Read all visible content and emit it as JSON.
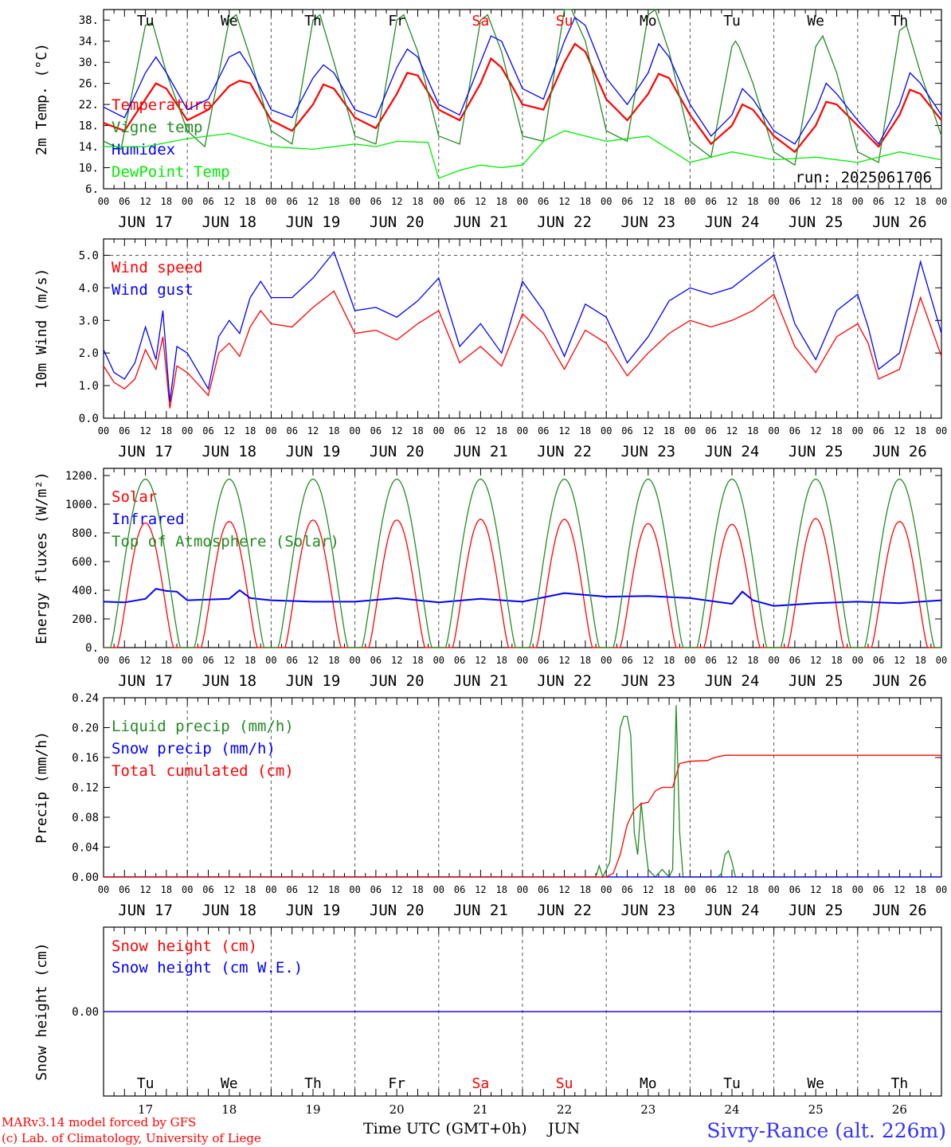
{
  "chart_data": [
    {
      "type": "line",
      "ylabel": "2m Temp. (°C)",
      "ylim": [
        6,
        40
      ],
      "yticks": [
        "6.",
        "10.",
        "14.",
        "18.",
        "22.",
        "26.",
        "30.",
        "34.",
        "38."
      ],
      "annotation": "run: 2025061706",
      "grid": "dashed vertical at 00 UTC",
      "x_unit": "hours since 17 Jun 00 UTC",
      "series": [
        {
          "name": "Temperature",
          "color": "#ff0000",
          "x": [
            0,
            6,
            12,
            15,
            18,
            24,
            30,
            36,
            39,
            42,
            48,
            54,
            60,
            63,
            66,
            72,
            78,
            84,
            87,
            90,
            96,
            102,
            108,
            111,
            114,
            120,
            126,
            132,
            135,
            138,
            144,
            150,
            156,
            159,
            162,
            168,
            174,
            180,
            183,
            186,
            192,
            198,
            204,
            207,
            210,
            216,
            222,
            228,
            231,
            234,
            240
          ],
          "values": [
            18.5,
            17,
            23,
            26,
            25,
            19,
            21,
            25.5,
            26.5,
            26,
            19,
            17,
            22,
            25.8,
            25,
            19.5,
            17.5,
            24,
            28,
            27.5,
            21,
            19,
            26,
            30.7,
            29,
            22,
            21,
            30,
            33.5,
            32,
            23,
            19,
            24,
            27.8,
            27,
            20,
            14.5,
            18,
            22,
            21,
            16,
            13,
            18,
            22.5,
            22,
            18,
            14,
            20,
            24.8,
            24,
            19
          ]
        },
        {
          "name": "Vigne temp",
          "color": "#228b22",
          "x": [
            0,
            5,
            12,
            14,
            18,
            24,
            29,
            36,
            38,
            42,
            48,
            54,
            60,
            62,
            66,
            72,
            78,
            84,
            86,
            90,
            96,
            102,
            108,
            110,
            114,
            120,
            126,
            132,
            134,
            138,
            144,
            150,
            156,
            158,
            162,
            168,
            174,
            180,
            181,
            182,
            186,
            192,
            198,
            204,
            206,
            210,
            216,
            222,
            228,
            230,
            234,
            240
          ],
          "values": [
            15,
            13.5,
            37,
            37.5,
            28,
            17,
            14,
            38,
            39,
            31,
            17,
            14.5,
            38,
            39,
            30,
            16,
            14.5,
            38,
            39,
            32,
            16,
            14.5,
            38,
            39,
            32,
            16,
            15,
            40,
            41,
            34,
            17,
            15,
            39,
            40,
            32,
            15,
            12,
            33,
            34,
            33,
            26,
            13,
            10.5,
            33,
            35,
            28,
            13,
            11,
            36,
            37,
            28,
            16
          ]
        },
        {
          "name": "Humidex",
          "color": "#0000ff",
          "x": [
            0,
            6,
            12,
            15,
            18,
            24,
            30,
            36,
            39,
            42,
            48,
            54,
            60,
            63,
            66,
            72,
            78,
            84,
            87,
            90,
            96,
            102,
            108,
            111,
            114,
            120,
            126,
            132,
            135,
            138,
            144,
            150,
            156,
            159,
            162,
            168,
            174,
            180,
            183,
            186,
            192,
            198,
            204,
            207,
            210,
            216,
            222,
            228,
            231,
            234,
            240
          ],
          "values": [
            21.5,
            19.5,
            28,
            31,
            28,
            21,
            23,
            31,
            32,
            29,
            21,
            19.5,
            27,
            29.5,
            28,
            21,
            19.5,
            29,
            32.5,
            31,
            22,
            20,
            30,
            35,
            34,
            25,
            23,
            34,
            38.5,
            37,
            27,
            22,
            28,
            33.5,
            31,
            22,
            16,
            20,
            25,
            23,
            17,
            14.5,
            21,
            26,
            24,
            19,
            14.5,
            22,
            28,
            26,
            20
          ]
        },
        {
          "name": "DewPoint Temp",
          "color": "#00ee00",
          "x": [
            0,
            12,
            24,
            36,
            48,
            60,
            72,
            78,
            84,
            93,
            96,
            102,
            108,
            114,
            120,
            126,
            132,
            144,
            156,
            168,
            180,
            192,
            204,
            216,
            228,
            240
          ],
          "values": [
            14,
            14,
            15.5,
            16.5,
            14,
            13.5,
            14.5,
            14,
            15,
            14.8,
            8,
            9.5,
            10.5,
            10,
            10.5,
            15,
            17,
            15,
            16,
            11,
            13,
            11.5,
            12,
            11,
            13,
            11.5
          ]
        }
      ]
    },
    {
      "type": "line",
      "ylabel": "10m Wind (m/s)",
      "ylim": [
        0,
        5.5
      ],
      "yticks": [
        "0.0",
        "1.0",
        "2.0",
        "3.0",
        "4.0",
        "5.0"
      ],
      "grid": "dashed vertical at 00 UTC; dashed horizontal at 5.0",
      "x_unit": "hours since 17 Jun 00 UTC",
      "series": [
        {
          "name": "Wind speed",
          "color": "#ff0000",
          "x": [
            0,
            3,
            6,
            9,
            12,
            15,
            17,
            19,
            21,
            24,
            30,
            33,
            36,
            39,
            42,
            45,
            48,
            54,
            60,
            66,
            72,
            78,
            84,
            90,
            96,
            102,
            108,
            114,
            120,
            126,
            132,
            138,
            144,
            150,
            156,
            162,
            168,
            174,
            180,
            186,
            192,
            198,
            204,
            210,
            216,
            219,
            222,
            228,
            234,
            240
          ],
          "values": [
            1.6,
            1.1,
            0.9,
            1.2,
            2.1,
            1.5,
            2.5,
            0.3,
            1.6,
            1.4,
            0.7,
            2.0,
            2.3,
            1.9,
            2.8,
            3.3,
            2.9,
            2.8,
            3.4,
            3.9,
            2.6,
            2.7,
            2.4,
            2.9,
            3.3,
            1.7,
            2.2,
            1.6,
            3.2,
            2.6,
            1.5,
            2.7,
            2.3,
            1.3,
            2.0,
            2.6,
            3.0,
            2.8,
            3.0,
            3.3,
            3.8,
            2.2,
            1.4,
            2.5,
            2.9,
            2.3,
            1.2,
            1.5,
            3.7,
            1.9
          ]
        },
        {
          "name": "Wind gust",
          "color": "#0000ff",
          "x": [
            0,
            3,
            6,
            9,
            12,
            15,
            17,
            19,
            21,
            24,
            30,
            33,
            36,
            39,
            42,
            45,
            48,
            54,
            60,
            66,
            72,
            78,
            84,
            90,
            96,
            102,
            108,
            114,
            120,
            126,
            132,
            138,
            144,
            150,
            156,
            162,
            168,
            174,
            180,
            186,
            192,
            198,
            204,
            210,
            216,
            219,
            222,
            228,
            234,
            240
          ],
          "values": [
            2.1,
            1.4,
            1.2,
            1.7,
            2.8,
            1.8,
            3.3,
            0.5,
            2.2,
            2.0,
            0.9,
            2.5,
            3.0,
            2.6,
            3.7,
            4.2,
            3.7,
            3.7,
            4.3,
            5.1,
            3.3,
            3.4,
            3.1,
            3.6,
            4.3,
            2.2,
            2.9,
            2.0,
            4.2,
            3.3,
            1.9,
            3.5,
            3.1,
            1.7,
            2.5,
            3.6,
            4.0,
            3.8,
            4.0,
            4.5,
            5.0,
            2.9,
            1.8,
            3.3,
            3.8,
            2.8,
            1.5,
            2.0,
            4.8,
            2.6
          ]
        }
      ]
    },
    {
      "type": "line",
      "ylabel": "Energy fluxes (W/m²)",
      "ylim": [
        0,
        1250
      ],
      "yticks": [
        "0.",
        "200.",
        "400.",
        "600.",
        "800.",
        "1000.",
        "1200."
      ],
      "grid": "dashed vertical at 00 UTC",
      "x_unit": "hours since 17 Jun 00 UTC",
      "series": [
        {
          "name": "Solar",
          "color": "#ff0000",
          "daily_peaks_w_m2": [
            870,
            880,
            890,
            890,
            895,
            895,
            865,
            860,
            900,
            880
          ],
          "daylight_hours_utc": [
            4,
            20
          ]
        },
        {
          "name": "Infrared",
          "color": "#0000ff",
          "x": [
            0,
            6,
            12,
            15,
            18,
            21,
            24,
            36,
            39,
            42,
            48,
            60,
            72,
            84,
            96,
            108,
            120,
            132,
            144,
            156,
            168,
            180,
            183,
            186,
            192,
            198,
            204,
            216,
            228,
            240
          ],
          "values": [
            320,
            315,
            340,
            410,
            395,
            390,
            330,
            340,
            400,
            345,
            330,
            320,
            320,
            345,
            315,
            340,
            320,
            380,
            355,
            360,
            345,
            305,
            390,
            330,
            290,
            300,
            310,
            320,
            310,
            330
          ]
        },
        {
          "name": "Top of Atmosphere (Solar)",
          "color": "#228b22",
          "daily_peak_w_m2": 1175,
          "daylight_hours_utc": [
            2,
            22
          ]
        }
      ]
    },
    {
      "type": "line",
      "ylabel": "Precip (mm/h)",
      "ylim": [
        0,
        0.24
      ],
      "yticks": [
        "0.00",
        "0.04",
        "0.08",
        "0.12",
        "0.16",
        "0.20",
        "0.24"
      ],
      "grid": "dashed vertical at 00 UTC",
      "x_unit": "hours since 17 Jun 00 UTC",
      "series": [
        {
          "name": "Liquid precip (mm/h)",
          "color": "#228b22",
          "x": [
            0,
            141,
            142,
            143,
            145,
            147,
            148,
            149,
            150,
            151,
            152,
            153,
            154,
            155,
            156,
            158,
            160,
            162,
            163,
            164,
            165,
            166,
            168,
            176,
            177,
            178,
            179,
            180,
            181,
            182,
            240
          ],
          "values": [
            0,
            0,
            0.015,
            0,
            0.02,
            0.14,
            0.2,
            0.215,
            0.215,
            0.19,
            0.06,
            0.03,
            0.1,
            0.05,
            0.01,
            0,
            0.01,
            0,
            0.01,
            0.23,
            0.06,
            0,
            0,
            0,
            0.005,
            0.03,
            0.035,
            0.02,
            0,
            0,
            0
          ]
        },
        {
          "name": "Snow precip (mm/h)",
          "color": "#0000ff",
          "x": [
            0,
            240
          ],
          "values": [
            0,
            0
          ]
        },
        {
          "name": "Total cumulated (cm)",
          "color": "#ff0000",
          "x": [
            0,
            144,
            146,
            148,
            150,
            152,
            154,
            156,
            158,
            160,
            162,
            163,
            165,
            168,
            173,
            175,
            178,
            180,
            240
          ],
          "values": [
            0,
            0,
            0.005,
            0.03,
            0.07,
            0.09,
            0.098,
            0.1,
            0.115,
            0.12,
            0.12,
            0.12,
            0.152,
            0.155,
            0.156,
            0.16,
            0.163,
            0.163,
            0.163
          ]
        }
      ]
    },
    {
      "type": "line",
      "ylabel": "Snow height (cm)",
      "ylim": [
        -1,
        1
      ],
      "yticks": [
        "0.00"
      ],
      "grid": "dashed vertical at 00 UTC",
      "x_unit": "hours since 17 Jun 00 UTC",
      "series": [
        {
          "name": "Snow height (cm)",
          "color": "#ff0000",
          "x": [
            0,
            240
          ],
          "values": [
            0,
            0
          ]
        },
        {
          "name": "Snow height (cm W.E.)",
          "color": "#0000ff",
          "x": [
            0,
            240
          ],
          "values": [
            0,
            0
          ]
        }
      ]
    }
  ],
  "axes": {
    "hour_labels": [
      "00",
      "06",
      "12",
      "18"
    ],
    "date_labels": [
      "JUN 17",
      "JUN 18",
      "JUN 19",
      "JUN 20",
      "JUN 21",
      "JUN 22",
      "JUN 23",
      "JUN 24",
      "JUN 25",
      "JUN 26"
    ],
    "day_labels": [
      "Tu",
      "We",
      "Th",
      "Fr",
      "Sa",
      "Su",
      "Mo",
      "Tu",
      "We",
      "Th"
    ],
    "weekend_days": [
      "Sa",
      "Su"
    ],
    "day_numbers": [
      "17",
      "18",
      "19",
      "20",
      "21",
      "22",
      "23",
      "24",
      "25",
      "26"
    ],
    "time_axis_title": "Time UTC (GMT+0h)",
    "month_label": "JUN"
  },
  "footer": {
    "model_line": "MARv3.14 model forced by GFS",
    "credit_line": "(c) Lab. of Climatology, University of Liege",
    "station": "Sivry-Rance (alt. 226m)"
  },
  "colors": {
    "red": "#ff0000",
    "green": "#228b22",
    "blue": "#0000ff",
    "lightgreen": "#00ee00",
    "axis": "#000000",
    "grid": "#555555",
    "station": "#3333ff"
  }
}
